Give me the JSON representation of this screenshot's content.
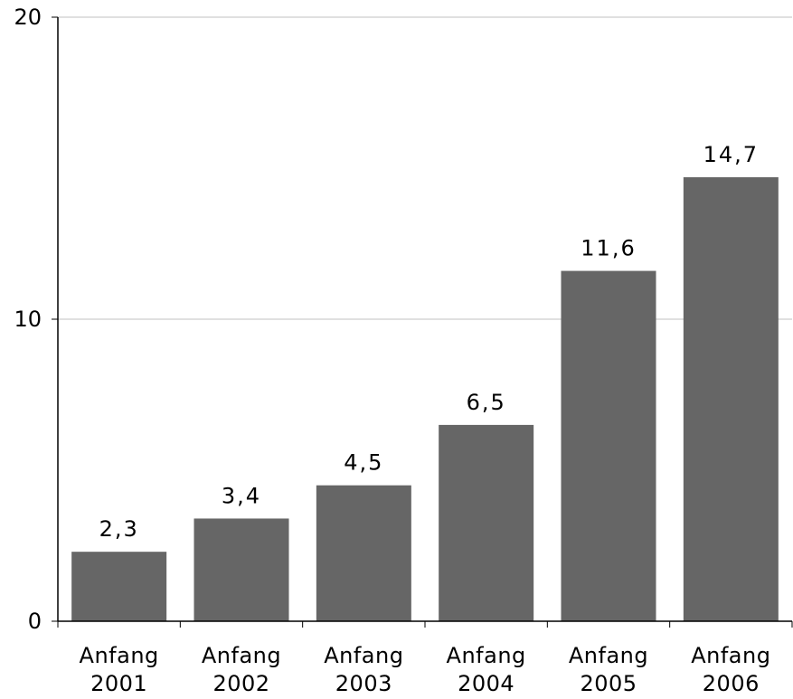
{
  "chart_data": {
    "type": "bar",
    "categories": [
      [
        "Anfang",
        "2001"
      ],
      [
        "Anfang",
        "2002"
      ],
      [
        "Anfang",
        "2003"
      ],
      [
        "Anfang",
        "2004"
      ],
      [
        "Anfang",
        "2005"
      ],
      [
        "Anfang",
        "2006"
      ]
    ],
    "values": [
      2.3,
      3.4,
      4.5,
      6.5,
      11.6,
      14.7
    ],
    "value_labels": [
      "2,3",
      "3,4",
      "4,5",
      "6,5",
      "11,6",
      "14,7"
    ],
    "ylim": [
      0,
      20
    ],
    "yticks": [
      0,
      10,
      20
    ],
    "ytick_labels": [
      "0",
      "10",
      "20"
    ],
    "grid": true,
    "legend": "none",
    "colors": {
      "bar": "#666666",
      "grid": "#c0c0c0",
      "axis": "#000000"
    }
  }
}
